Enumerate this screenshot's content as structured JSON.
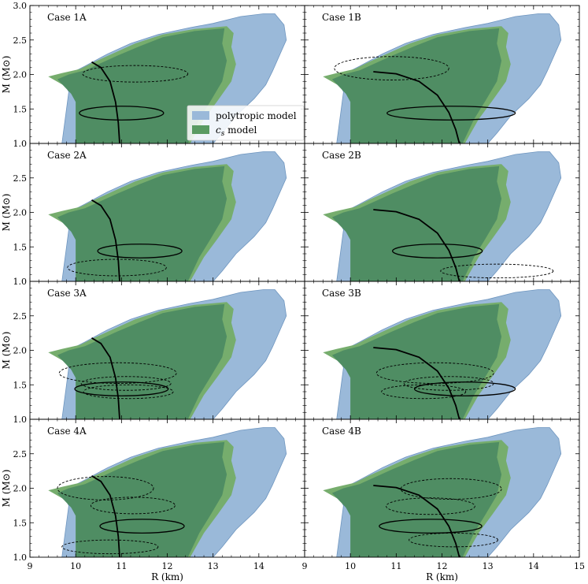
{
  "chart_data": {
    "type": "scatter",
    "layout": "4 rows x 2 columns, shared axes",
    "xlabel": "R (km)",
    "ylabel": "M (M⊙)",
    "xlim": [
      9,
      12
    ],
    "xlim_right": [
      9,
      15
    ],
    "ylim": [
      1.0,
      3.0
    ],
    "x_ticks_left": [
      "9",
      "10",
      "11",
      "12",
      "13",
      "14"
    ],
    "x_ticks_right": [
      "9",
      "10",
      "11",
      "12",
      "13",
      "14",
      "15"
    ],
    "y_ticks_top": [
      "1.0",
      "1.5",
      "2.0",
      "2.5",
      "3.0"
    ],
    "y_ticks": [
      "1.0",
      "1.5",
      "2.0",
      "2.5"
    ],
    "legend": {
      "placement": "inside Case 1A panel, lower-right",
      "entries": [
        {
          "label": "polytropic model",
          "color": "#9ab9d9"
        },
        {
          "label": "c_s model",
          "color": "#5a9b62"
        }
      ]
    },
    "colors": {
      "polytropic": "#9ab9d9",
      "polytropic_edge": "#6e95bf",
      "cs_light": "#76ad6d",
      "cs_dark": "#4f8d63"
    },
    "regions": {
      "polytropic": [
        [
          9.7,
          1.0
        ],
        [
          9.75,
          1.25
        ],
        [
          9.8,
          1.5
        ],
        [
          9.85,
          1.75
        ],
        [
          9.7,
          1.93
        ],
        [
          9.9,
          2.02
        ],
        [
          10.2,
          2.12
        ],
        [
          10.7,
          2.3
        ],
        [
          11.2,
          2.45
        ],
        [
          11.8,
          2.58
        ],
        [
          12.5,
          2.68
        ],
        [
          13.0,
          2.74
        ],
        [
          13.6,
          2.84
        ],
        [
          14.1,
          2.88
        ],
        [
          14.35,
          2.88
        ],
        [
          14.55,
          2.72
        ],
        [
          14.6,
          2.5
        ],
        [
          14.5,
          2.35
        ],
        [
          14.4,
          2.2
        ],
        [
          14.3,
          2.05
        ],
        [
          14.15,
          1.85
        ],
        [
          13.9,
          1.65
        ],
        [
          13.5,
          1.4
        ],
        [
          13.2,
          1.15
        ],
        [
          13.0,
          1.0
        ]
      ],
      "cs_light": [
        [
          10.0,
          1.0
        ],
        [
          10.0,
          1.5
        ],
        [
          10.0,
          1.72
        ],
        [
          9.85,
          1.8
        ],
        [
          9.4,
          1.97
        ],
        [
          9.7,
          2.02
        ],
        [
          10.1,
          2.08
        ],
        [
          10.4,
          2.18
        ],
        [
          10.8,
          2.3
        ],
        [
          11.3,
          2.45
        ],
        [
          11.9,
          2.58
        ],
        [
          12.6,
          2.66
        ],
        [
          13.3,
          2.7
        ],
        [
          13.45,
          2.6
        ],
        [
          13.4,
          2.4
        ],
        [
          13.5,
          2.15
        ],
        [
          13.4,
          1.9
        ],
        [
          13.1,
          1.62
        ],
        [
          12.8,
          1.35
        ],
        [
          12.5,
          1.0
        ]
      ],
      "cs_dark": [
        [
          10.0,
          1.0
        ],
        [
          10.0,
          1.6
        ],
        [
          9.9,
          1.72
        ],
        [
          9.6,
          1.93
        ],
        [
          9.85,
          2.0
        ],
        [
          10.2,
          2.06
        ],
        [
          10.5,
          2.15
        ],
        [
          10.9,
          2.27
        ],
        [
          11.4,
          2.41
        ],
        [
          11.9,
          2.54
        ],
        [
          12.6,
          2.63
        ],
        [
          13.25,
          2.67
        ],
        [
          13.2,
          2.45
        ],
        [
          13.3,
          2.2
        ],
        [
          13.2,
          1.9
        ],
        [
          12.95,
          1.62
        ],
        [
          12.7,
          1.35
        ],
        [
          12.45,
          1.0
        ]
      ]
    },
    "mr_curves": {
      "A": [
        [
          10.35,
          2.18
        ],
        [
          10.55,
          2.1
        ],
        [
          10.75,
          1.9
        ],
        [
          10.87,
          1.6
        ],
        [
          10.93,
          1.3
        ],
        [
          10.96,
          1.0
        ]
      ],
      "B": [
        [
          10.5,
          2.04
        ],
        [
          11.0,
          2.01
        ],
        [
          11.5,
          1.9
        ],
        [
          11.9,
          1.7
        ],
        [
          12.15,
          1.45
        ],
        [
          12.3,
          1.2
        ],
        [
          12.38,
          1.0
        ]
      ]
    },
    "panels": [
      {
        "label": "Case 1A",
        "curve": "A",
        "legend": true,
        "ellipses": [
          {
            "cx": 11.3,
            "cy": 2.01,
            "rx": 1.15,
            "ry": 0.12,
            "style": "dashed"
          },
          {
            "cx": 11.0,
            "cy": 1.44,
            "rx": 0.92,
            "ry": 0.1,
            "style": "solid"
          }
        ]
      },
      {
        "label": "Case 1B",
        "curve": "B",
        "ellipses": [
          {
            "cx": 10.9,
            "cy": 2.09,
            "rx": 1.25,
            "ry": 0.17,
            "style": "dashed"
          },
          {
            "cx": 12.2,
            "cy": 1.44,
            "rx": 1.4,
            "ry": 0.1,
            "style": "solid"
          }
        ]
      },
      {
        "label": "Case 2A",
        "curve": "A",
        "ellipses": [
          {
            "cx": 11.4,
            "cy": 1.44,
            "rx": 0.92,
            "ry": 0.1,
            "style": "solid"
          },
          {
            "cx": 10.9,
            "cy": 1.2,
            "rx": 1.08,
            "ry": 0.12,
            "style": "dashed"
          }
        ]
      },
      {
        "label": "Case 2B",
        "curve": "B",
        "ellipses": [
          {
            "cx": 11.9,
            "cy": 1.44,
            "rx": 0.98,
            "ry": 0.1,
            "style": "solid"
          },
          {
            "cx": 13.2,
            "cy": 1.15,
            "rx": 1.23,
            "ry": 0.1,
            "style": "dashed"
          }
        ]
      },
      {
        "label": "Case 3A",
        "curve": "A",
        "ellipses": [
          {
            "cx": 10.92,
            "cy": 1.67,
            "rx": 1.28,
            "ry": 0.15,
            "style": "dashed"
          },
          {
            "cx": 11.1,
            "cy": 1.52,
            "rx": 0.98,
            "ry": 0.1,
            "style": "dashed"
          },
          {
            "cx": 11.0,
            "cy": 1.44,
            "rx": 1.02,
            "ry": 0.1,
            "style": "solid"
          },
          {
            "cx": 11.15,
            "cy": 1.4,
            "rx": 0.98,
            "ry": 0.1,
            "style": "dashed"
          }
        ]
      },
      {
        "label": "Case 3B",
        "curve": "B",
        "ellipses": [
          {
            "cx": 11.85,
            "cy": 1.67,
            "rx": 1.28,
            "ry": 0.15,
            "style": "dashed"
          },
          {
            "cx": 12.15,
            "cy": 1.52,
            "rx": 0.98,
            "ry": 0.1,
            "style": "dashed"
          },
          {
            "cx": 12.5,
            "cy": 1.44,
            "rx": 1.1,
            "ry": 0.1,
            "style": "solid"
          },
          {
            "cx": 11.6,
            "cy": 1.4,
            "rx": 0.92,
            "ry": 0.1,
            "style": "dashed"
          }
        ]
      },
      {
        "label": "Case 4A",
        "curve": "A",
        "ellipses": [
          {
            "cx": 10.65,
            "cy": 2.0,
            "rx": 1.05,
            "ry": 0.17,
            "style": "dashed"
          },
          {
            "cx": 11.25,
            "cy": 1.75,
            "rx": 0.92,
            "ry": 0.12,
            "style": "dashed"
          },
          {
            "cx": 11.45,
            "cy": 1.45,
            "rx": 0.92,
            "ry": 0.1,
            "style": "solid"
          },
          {
            "cx": 10.75,
            "cy": 1.15,
            "rx": 1.05,
            "ry": 0.1,
            "style": "dashed"
          }
        ]
      },
      {
        "label": "Case 4B",
        "curve": "B",
        "ellipses": [
          {
            "cx": 12.2,
            "cy": 1.99,
            "rx": 1.1,
            "ry": 0.15,
            "style": "dashed"
          },
          {
            "cx": 11.75,
            "cy": 1.74,
            "rx": 0.97,
            "ry": 0.12,
            "style": "dashed"
          },
          {
            "cx": 11.75,
            "cy": 1.45,
            "rx": 1.12,
            "ry": 0.1,
            "style": "solid"
          },
          {
            "cx": 12.25,
            "cy": 1.25,
            "rx": 0.97,
            "ry": 0.1,
            "style": "dashed"
          }
        ]
      }
    ]
  }
}
